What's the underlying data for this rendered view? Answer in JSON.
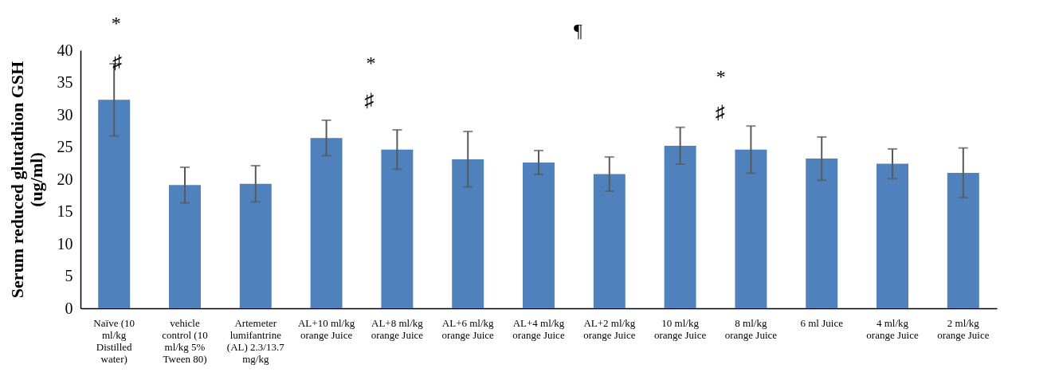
{
  "chart_data": {
    "type": "bar",
    "ylabel": "Serum reduced glutathion GSH (ug/ml)",
    "categories": [
      "Naïve (10 ml/kg Distilled water)",
      "vehicle control (10 ml/kg 5% Tween 80)",
      "Artemeter lumifantrine (AL) 2.3/13.7 mg/kg",
      "AL+10 ml/kg orange Juice",
      "AL+8 ml/kg orange Juice",
      "AL+6 ml/kg orange Juice",
      "AL+4 ml/kg orange Juice",
      "AL+2 ml/kg orange Juice",
      "10 ml/kg orange Juice",
      "8 ml/kg orange Juice",
      "6 ml Juice",
      "4 ml/kg orange Juice",
      "2 ml/kg orange Juice"
    ],
    "values": [
      32.3,
      19.1,
      19.3,
      26.4,
      24.6,
      23.1,
      22.6,
      20.8,
      25.2,
      24.6,
      23.2,
      22.4,
      21.0
    ],
    "errors": [
      5.6,
      2.75,
      2.8,
      2.75,
      3.05,
      4.3,
      1.85,
      2.65,
      2.85,
      3.65,
      3.35,
      2.3,
      3.85
    ],
    "color": "#4f81bd",
    "ylim": [
      0,
      40
    ],
    "yticks": [
      0,
      5,
      10,
      15,
      20,
      25,
      30,
      35,
      40
    ],
    "grid": false,
    "annotations": [
      "*",
      "♯",
      "*",
      "♯",
      "*",
      "♯",
      "¶"
    ]
  }
}
